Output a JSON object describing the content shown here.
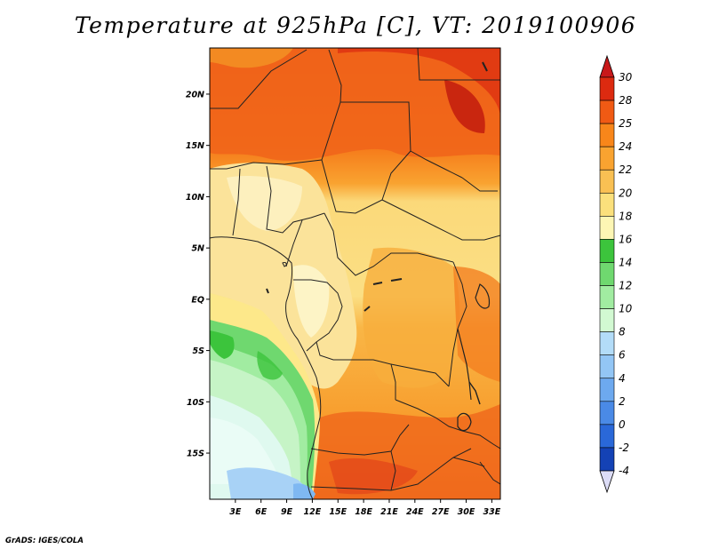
{
  "title": "Temperature at 925hPa [C], VT: 2019100906",
  "credit": "GrADS: IGES/COLA",
  "map": {
    "lon_range": [
      0,
      34
    ],
    "lat_range": [
      -19.5,
      24.5
    ],
    "x_ticks": [
      "3E",
      "6E",
      "9E",
      "12E",
      "15E",
      "18E",
      "21E",
      "24E",
      "27E",
      "30E",
      "33E"
    ],
    "x_tick_values": [
      3,
      6,
      9,
      12,
      15,
      18,
      21,
      24,
      27,
      30,
      33
    ],
    "y_ticks": [
      "20N",
      "15N",
      "10N",
      "5N",
      "EQ",
      "5S",
      "10S",
      "15S"
    ],
    "y_tick_values": [
      20,
      15,
      10,
      5,
      0,
      -5,
      -10,
      -15
    ]
  },
  "colorbar": {
    "levels": [
      "30",
      "28",
      "25",
      "24",
      "22",
      "20",
      "18",
      "16",
      "14",
      "12",
      "10",
      "8",
      "6",
      "4",
      "2",
      "0",
      "-2",
      "-4"
    ],
    "colors": [
      "#dc2a10",
      "#f05a14",
      "#f8861a",
      "#f9a330",
      "#f9c053",
      "#fbe07c",
      "#fdf6b4",
      "#3cc43c",
      "#6fd86f",
      "#a1eca1",
      "#d2f9d2",
      "#b3dcf8",
      "#93c6f5",
      "#6da9ef",
      "#4a8ae6",
      "#2a68d8",
      "#1442b5",
      "#0b1f85"
    ],
    "top_color": "#c8181a",
    "bottom_color": "#dcdcf6"
  }
}
